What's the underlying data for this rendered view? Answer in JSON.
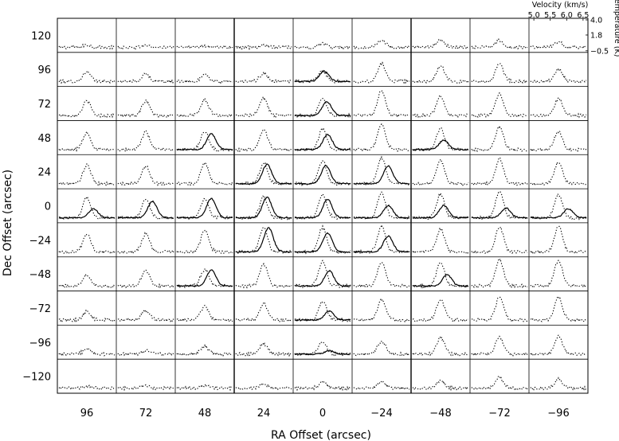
{
  "chart_data": {
    "type": "line",
    "xlabel": "RA Offset (arcsec)",
    "ylabel": "Dec Offset (arcsec)",
    "ra_offsets": [
      96,
      72,
      48,
      24,
      0,
      -24,
      -48,
      -72,
      -96
    ],
    "ra_labels": [
      "96",
      "72",
      "48",
      "24",
      "0",
      "−24",
      "−48",
      "−72",
      "−96"
    ],
    "dec_offsets": [
      120,
      96,
      72,
      48,
      24,
      0,
      -24,
      -48,
      -72,
      -96,
      -120
    ],
    "dec_labels": [
      "120",
      "96",
      "72",
      "48",
      "24",
      "0",
      "−24",
      "−48",
      "−72",
      "−96",
      "−120"
    ],
    "inset_axes": {
      "velocity_label": "Velocity (km/s)",
      "velocity_ticks": [
        "5.0",
        "5.5",
        "6.0",
        "6.5"
      ],
      "velocity_range": [
        4.9,
        6.6
      ],
      "temperature_label": "Temperature (K)",
      "temperature_ticks": [
        "4.0",
        "1.8",
        "−0.5"
      ],
      "temperature_range": [
        -0.5,
        4.0
      ]
    },
    "series": [
      {
        "style": "dotted",
        "description_key": "dotted",
        "peak_velocity": 5.75,
        "width": 0.12,
        "peak_temperatures": [
          [
            0.35,
            0.3,
            0.25,
            0.3,
            0.5,
            1.1,
            1.1,
            1.0,
            0.8
          ],
          [
            1.4,
            1.1,
            1.0,
            1.2,
            1.6,
            2.6,
            2.3,
            2.5,
            1.8
          ],
          [
            2.1,
            2.1,
            2.3,
            2.5,
            2.6,
            3.6,
            2.8,
            3.2,
            2.4
          ],
          [
            2.5,
            2.6,
            2.7,
            2.9,
            3.0,
            3.7,
            3.1,
            3.3,
            2.7
          ],
          [
            2.7,
            2.6,
            2.9,
            3.0,
            3.3,
            3.8,
            3.4,
            3.6,
            3.2
          ],
          [
            2.9,
            2.8,
            2.8,
            3.0,
            3.4,
            3.6,
            3.4,
            3.8,
            3.4
          ],
          [
            2.6,
            2.6,
            3.1,
            3.5,
            3.6,
            3.7,
            3.3,
            3.7,
            3.7
          ],
          [
            1.7,
            2.3,
            2.4,
            3.1,
            3.5,
            3.6,
            3.4,
            3.8,
            3.7
          ],
          [
            1.2,
            1.4,
            2.0,
            2.4,
            2.7,
            2.9,
            3.0,
            3.3,
            3.3
          ],
          [
            0.7,
            0.5,
            1.1,
            1.5,
            1.9,
            1.9,
            2.4,
            2.5,
            2.6
          ],
          [
            0.3,
            0.3,
            0.4,
            0.6,
            0.9,
            1.0,
            1.1,
            1.6,
            1.3
          ]
        ]
      },
      {
        "style": "solid",
        "peak_velocity": 5.9,
        "width": 0.14,
        "spectra": [
          {
            "ra": 0,
            "dec": 96,
            "peak": 1.5,
            "vel": 5.8
          },
          {
            "ra": 0,
            "dec": 72,
            "peak": 2.0,
            "vel": 5.88
          },
          {
            "ra": 48,
            "dec": 48,
            "peak": 2.3,
            "vel": 5.95
          },
          {
            "ra": 0,
            "dec": 48,
            "peak": 2.2,
            "vel": 5.9
          },
          {
            "ra": -48,
            "dec": 48,
            "peak": 1.4,
            "vel": 5.85
          },
          {
            "ra": 24,
            "dec": 24,
            "peak": 2.8,
            "vel": 5.85
          },
          {
            "ra": 0,
            "dec": 24,
            "peak": 2.6,
            "vel": 5.85
          },
          {
            "ra": -24,
            "dec": 24,
            "peak": 2.6,
            "vel": 5.95
          },
          {
            "ra": 96,
            "dec": 0,
            "peak": 1.3,
            "vel": 5.95
          },
          {
            "ra": 72,
            "dec": 0,
            "peak": 2.4,
            "vel": 5.95
          },
          {
            "ra": 48,
            "dec": 0,
            "peak": 2.8,
            "vel": 5.95
          },
          {
            "ra": 24,
            "dec": 0,
            "peak": 3.0,
            "vel": 5.85
          },
          {
            "ra": 0,
            "dec": 0,
            "peak": 2.7,
            "vel": 5.9
          },
          {
            "ra": -24,
            "dec": 0,
            "peak": 1.8,
            "vel": 5.95
          },
          {
            "ra": -48,
            "dec": 0,
            "peak": 1.8,
            "vel": 5.85
          },
          {
            "ra": -72,
            "dec": 0,
            "peak": 1.4,
            "vel": 5.95
          },
          {
            "ra": -96,
            "dec": 0,
            "peak": 1.3,
            "vel": 6.05
          },
          {
            "ra": 24,
            "dec": -24,
            "peak": 3.5,
            "vel": 5.9
          },
          {
            "ra": 0,
            "dec": -24,
            "peak": 2.7,
            "vel": 5.9
          },
          {
            "ra": -24,
            "dec": -24,
            "peak": 2.3,
            "vel": 5.95
          },
          {
            "ra": 48,
            "dec": -48,
            "peak": 2.3,
            "vel": 5.95
          },
          {
            "ra": 0,
            "dec": -48,
            "peak": 2.2,
            "vel": 5.95
          },
          {
            "ra": -48,
            "dec": -48,
            "peak": 1.6,
            "vel": 5.95
          },
          {
            "ra": 0,
            "dec": -72,
            "peak": 1.3,
            "vel": 5.95
          },
          {
            "ra": 0,
            "dec": -96,
            "peak": 0.5,
            "vel": 5.95
          }
        ]
      }
    ],
    "grid": false
  }
}
